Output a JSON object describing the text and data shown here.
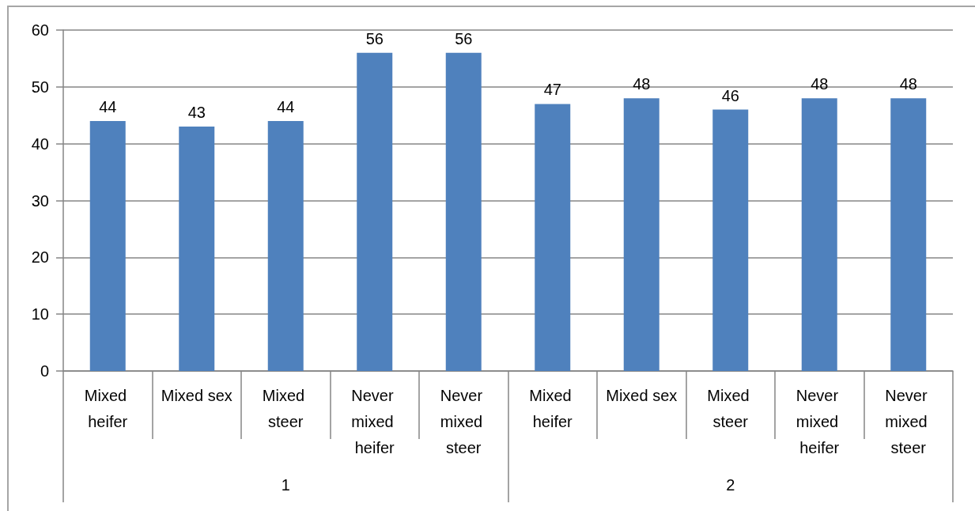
{
  "chart_data": {
    "type": "bar",
    "categories": [
      "Mixed heifer",
      "Mixed sex",
      "Mixed steer",
      "Never mixed heifer",
      "Never mixed steer",
      "Mixed heifer",
      "Mixed sex",
      "Mixed steer",
      "Never mixed heifer",
      "Never mixed steer"
    ],
    "values": [
      44,
      43,
      44,
      56,
      56,
      47,
      48,
      46,
      48,
      48
    ],
    "color": "#4f81bd",
    "ylim": [
      0,
      60
    ],
    "yticks": [
      0,
      10,
      20,
      30,
      40,
      50,
      60
    ],
    "grid": "y",
    "data_labels": true,
    "annotations": [
      "1",
      "2"
    ]
  }
}
